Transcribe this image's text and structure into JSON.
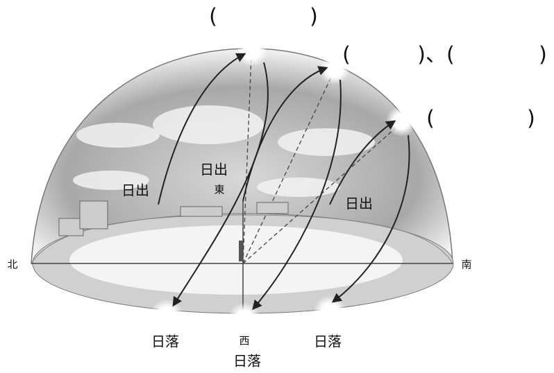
{
  "blanks": {
    "top": [
      "(",
      ")"
    ],
    "middle": [
      "(",
      ")、(",
      ")"
    ],
    "right": [
      "(",
      ")"
    ]
  },
  "directions": {
    "north": "北",
    "south": "南",
    "east": "東",
    "west": "西"
  },
  "sunrise": [
    "日出",
    "日出",
    "日出"
  ],
  "sunset": [
    "日落",
    "日落",
    "日落"
  ]
}
